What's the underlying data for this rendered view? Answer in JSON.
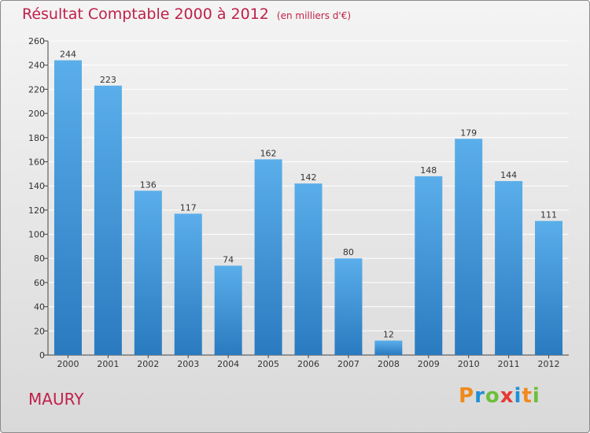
{
  "header": {
    "title": "Résultat Comptable 2000 à 2012",
    "subtitle": "(en milliers d'€)"
  },
  "place": "MAURY",
  "logo": {
    "letters": [
      "P",
      "r",
      "o",
      "x",
      "i",
      "t",
      "i"
    ],
    "colors": [
      "#f08a1c",
      "#1f8fd6",
      "#6cbf3b",
      "#e53935",
      "#1f8fd6",
      "#f08a1c",
      "#6cbf3b"
    ]
  },
  "colors": {
    "bar_top": "#5aaeea",
    "bar_bottom": "#2a7ac0",
    "grid": "#ffffff",
    "title": "#c0204a"
  },
  "chart_data": {
    "type": "bar",
    "title": "Résultat Comptable 2000 à 2012",
    "xlabel": "",
    "ylabel": "",
    "categories": [
      "2000",
      "2001",
      "2002",
      "2003",
      "2004",
      "2005",
      "2006",
      "2007",
      "2008",
      "2009",
      "2010",
      "2011",
      "2012"
    ],
    "values": [
      244,
      223,
      136,
      117,
      74,
      162,
      142,
      80,
      12,
      148,
      179,
      144,
      111
    ],
    "ylim": [
      0,
      260
    ],
    "yticks": [
      0,
      20,
      40,
      60,
      80,
      100,
      120,
      140,
      160,
      180,
      200,
      220,
      240,
      260
    ],
    "grid": true
  }
}
